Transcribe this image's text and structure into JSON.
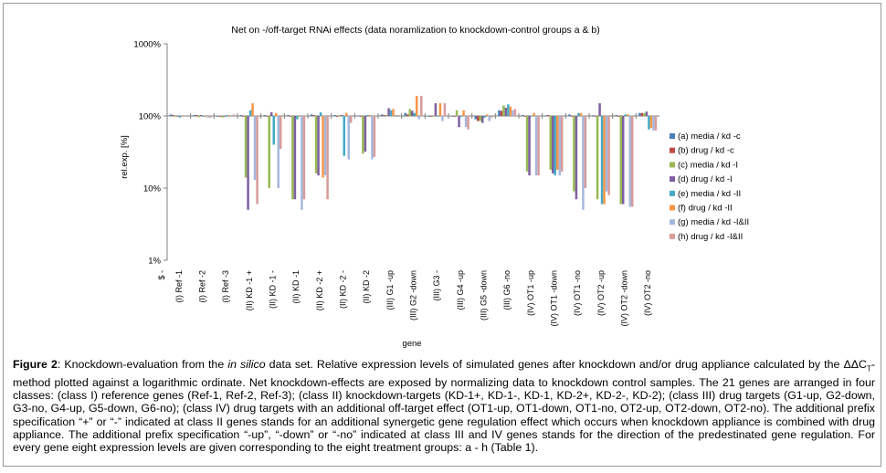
{
  "chart_data": {
    "type": "bar",
    "title": "Net on -/off-target RNAi effects (data noramlization to knockdown-control groups a & b)",
    "xlabel": "gene",
    "ylabel": "rel.exp. [%]",
    "yscale": "log",
    "ylim": [
      1,
      1000
    ],
    "yticks": [
      "1000%",
      "100%",
      "10%",
      "1%"
    ],
    "ytick_values": [
      1000,
      100,
      10,
      1
    ],
    "grid": false,
    "legend_position": "right",
    "first_tick_label": "$ -",
    "categories": [
      "(I) Ref  -1",
      "(I) Ref  -2",
      "(I) Ref  -3",
      "(II) KD -1 +",
      "(II) KD -1  -",
      "(II) KD  -1",
      "(II) KD  -2 +",
      "(II) KD -2  -",
      "(II) KD  -2",
      "(III) G1 -up",
      "(III) G2  -down",
      "(III) G3  -",
      "(III) G4 -up",
      "(III) G5  -down",
      "(III) G6  -no",
      "(IV) OT1  -up",
      "(IV) OT1  -down",
      "(IV) OT1 -no",
      "(IV) OT2  -up",
      "(IV) OT2  -down",
      "(IV) OT2  -no"
    ],
    "series": [
      {
        "name": "(a) media / kd    -c",
        "color": "#4a7ebb",
        "values": [
          105,
          103,
          98,
          103,
          103,
          103,
          105,
          103,
          101,
          105,
          110,
          100,
          100,
          90,
          120,
          103,
          102,
          105,
          102,
          103,
          110
        ]
      },
      {
        "name": "(b) drug / kd    -c",
        "color": "#be4b48",
        "values": [
          103,
          103,
          98,
          100,
          100,
          100,
          103,
          100,
          100,
          103,
          105,
          100,
          100,
          85,
          118,
          100,
          103,
          100,
          100,
          100,
          110
        ]
      },
      {
        "name": "(c) media / kd    -I",
        "color": "#98b954",
        "values": [
          98,
          96,
          95,
          14,
          10,
          7,
          16,
          103,
          30,
          103,
          125,
          100,
          120,
          85,
          140,
          17,
          18,
          9,
          7,
          6,
          110
        ]
      },
      {
        "name": "(d) drug / kd    -I",
        "color": "#7d60a0",
        "values": [
          100,
          103,
          98,
          5,
          113,
          7,
          15,
          103,
          32,
          128,
          118,
          150,
          70,
          80,
          130,
          15,
          16,
          7,
          150,
          6,
          115
        ]
      },
      {
        "name": "(e) media / kd    -II",
        "color": "#46aac5",
        "values": [
          95,
          98,
          103,
          120,
          40,
          90,
          112,
          28,
          103,
          120,
          110,
          100,
          100,
          95,
          145,
          102,
          15,
          110,
          6,
          105,
          65
        ]
      },
      {
        "name": "(f) drug / kd    -II",
        "color": "#f79646",
        "values": [
          100,
          98,
          103,
          150,
          110,
          100,
          14,
          110,
          103,
          125,
          190,
          150,
          120,
          105,
          135,
          110,
          18,
          110,
          6,
          105,
          68
        ]
      },
      {
        "name": "(g) media / kd    -I&II",
        "color": "#a5b8dd",
        "values": [
          100,
          95,
          98,
          13,
          10,
          5,
          15,
          25,
          25,
          103,
          90,
          85,
          70,
          85,
          120,
          15,
          15,
          5,
          9,
          5.5,
          63
        ]
      },
      {
        "name": "(h) drug / kd    -I&II",
        "color": "#d89c9a",
        "values": [
          100,
          95,
          105,
          6,
          35,
          7,
          7,
          80,
          27,
          103,
          190,
          150,
          65,
          95,
          125,
          15,
          17,
          10,
          8,
          5.5,
          63
        ]
      }
    ]
  },
  "caption": {
    "label": "Figure 2",
    "p1": ": Knockdown-evaluation from the ",
    "italic": "in silico",
    "p2": " data set. Relative expression levels of simulated genes after knockdown and/or drug appliance calculated by the ΔΔC",
    "sub": "T",
    "p3": "-method plotted against a logarithmic ordinate. Net knockdown-effects are exposed by normalizing data to knockdown control samples. The 21 genes are arranged in four classes: (class I) reference genes (Ref-1, Ref-2, Ref-3); (class II) knockdown-targets (KD-1+, KD-1-, KD-1, KD-2+, KD-2-, KD-2); (class III) drug targets (G1-up, G2-down, G3-no, G4-up, G5-down, G6-no); (class IV) drug targets with an additional off-target effect (OT1-up, OT1-down, OT1-no, OT2-up, OT2-down, OT2-no). The additional prefix specification “+” or “-” indicated at class II genes stands for an additional synergetic gene regulation effect which occurs when knockdown appliance is combined with drug appliance. The additional prefix specification “-up”, “-down” or “-no” indicated at class III and IV genes stands for the direction of the predestinated gene regulation. For every gene eight expression levels are given corresponding to the eight treatment groups: a - h (Table 1)."
  }
}
